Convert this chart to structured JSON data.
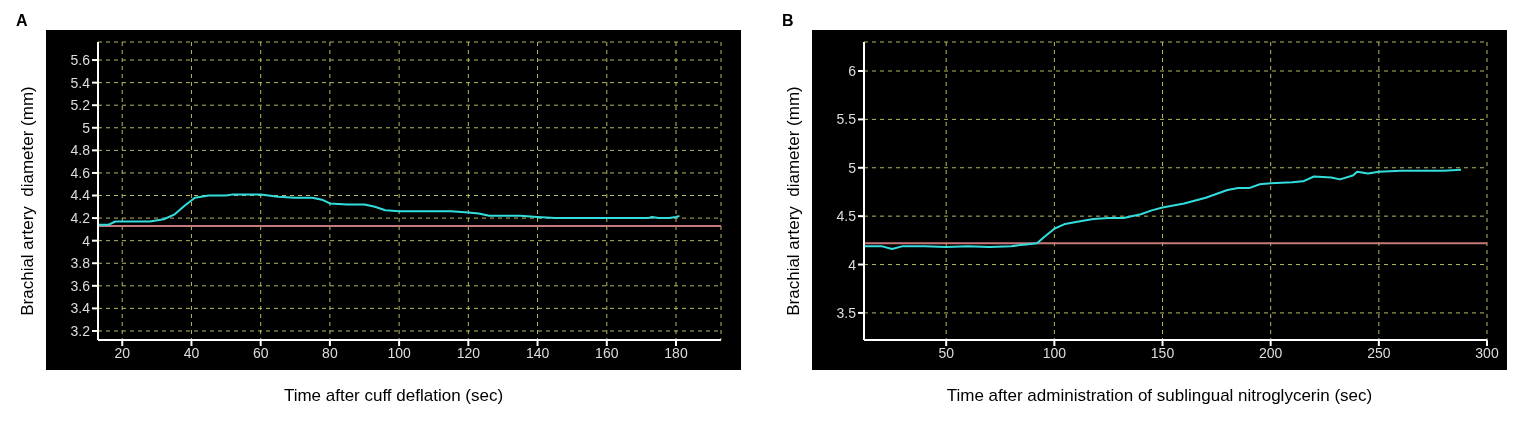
{
  "chart_data": [
    {
      "type": "line",
      "title": "A",
      "xlabel": "Time after cuff deflation (sec)",
      "ylabel": "Brachial artery  diameter (mm)",
      "xlim": [
        13,
        193
      ],
      "xticks": [
        20,
        40,
        60,
        80,
        100,
        120,
        140,
        160,
        180
      ],
      "ylim": [
        3.12,
        5.76
      ],
      "yticks": [
        3.2,
        3.4,
        3.6,
        3.8,
        4,
        4.2,
        4.4,
        4.6,
        4.8,
        5,
        5.2,
        5.4,
        5.6
      ],
      "grid": true,
      "marker": "none",
      "line_style": "solid",
      "series": [
        {
          "color": "#33dddd",
          "x": [
            13,
            16,
            18,
            22,
            28,
            32,
            35,
            38,
            41,
            45,
            50,
            52,
            60,
            65,
            70,
            75,
            78,
            80,
            85,
            90,
            93,
            96,
            100,
            105,
            115,
            120,
            123,
            126,
            135,
            140,
            145,
            160,
            172,
            173,
            175,
            178,
            180,
            181
          ],
          "values": [
            4.14,
            4.14,
            4.17,
            4.17,
            4.17,
            4.19,
            4.23,
            4.31,
            4.38,
            4.4,
            4.4,
            4.41,
            4.41,
            4.39,
            4.38,
            4.38,
            4.36,
            4.33,
            4.32,
            4.32,
            4.3,
            4.27,
            4.26,
            4.26,
            4.26,
            4.25,
            4.24,
            4.22,
            4.22,
            4.21,
            4.2,
            4.2,
            4.2,
            4.21,
            4.2,
            4.2,
            4.21,
            4.22
          ]
        }
      ],
      "ref_lines": [
        {
          "axis": "y",
          "value": 4.13,
          "color": "#c87878"
        }
      ]
    },
    {
      "type": "line",
      "title": "B",
      "xlabel": "Time after administration of sublingual nitroglycerin (sec)",
      "ylabel": "Brachial artery  diameter (mm)",
      "xlim": [
        12,
        300
      ],
      "xticks": [
        50,
        100,
        150,
        200,
        250,
        300
      ],
      "ylim": [
        3.22,
        6.3
      ],
      "yticks": [
        3.5,
        4,
        4.5,
        5,
        5.5,
        6
      ],
      "grid": true,
      "marker": "none",
      "line_style": "solid",
      "series": [
        {
          "color": "#33dddd",
          "x": [
            12,
            20,
            25,
            30,
            40,
            50,
            60,
            70,
            80,
            88,
            92,
            95,
            100,
            105,
            110,
            118,
            125,
            132,
            140,
            145,
            150,
            160,
            170,
            180,
            185,
            190,
            195,
            200,
            210,
            215,
            220,
            228,
            232,
            238,
            240,
            245,
            250,
            260,
            270,
            280,
            288
          ],
          "values": [
            4.19,
            4.19,
            4.16,
            4.19,
            4.19,
            4.18,
            4.19,
            4.18,
            4.19,
            4.21,
            4.22,
            4.28,
            4.37,
            4.42,
            4.44,
            4.47,
            4.48,
            4.48,
            4.52,
            4.56,
            4.59,
            4.63,
            4.69,
            4.77,
            4.79,
            4.79,
            4.83,
            4.84,
            4.85,
            4.86,
            4.91,
            4.9,
            4.88,
            4.92,
            4.96,
            4.94,
            4.96,
            4.97,
            4.97,
            4.97,
            4.98
          ]
        }
      ],
      "ref_lines": [
        {
          "axis": "y",
          "value": 4.22,
          "color": "#c87878"
        }
      ]
    }
  ]
}
